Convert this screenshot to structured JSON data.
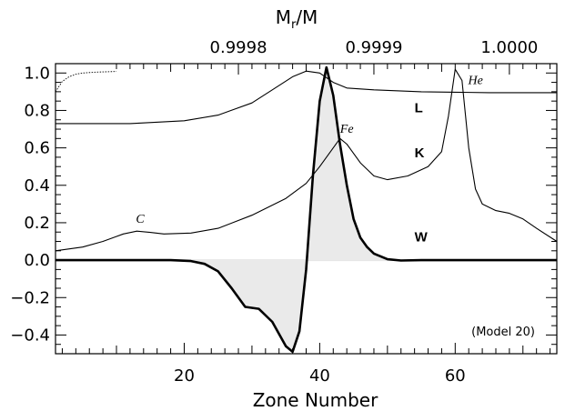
{
  "chart_data": {
    "type": "line",
    "xlabel": "Zone Number",
    "top_axis_label": "M",
    "top_axis_label_sub": "r",
    "top_axis_label_tail": "/M",
    "xlim": [
      1,
      75
    ],
    "ylim": [
      -0.5,
      1.05
    ],
    "x_ticks": [
      20,
      40,
      60
    ],
    "x_tick_labels": [
      "20",
      "40",
      "60"
    ],
    "y_ticks": [
      -0.4,
      -0.2,
      0.0,
      0.2,
      0.4,
      0.6,
      0.8,
      1.0
    ],
    "y_tick_labels": [
      "−0.4",
      "−0.2",
      "0.0",
      "0.2",
      "0.4",
      "0.6",
      "0.8",
      "1.0"
    ],
    "top_ticks": [
      {
        "label": "0.9998",
        "at_zone": 28
      },
      {
        "label": "0.9999",
        "at_zone": 48
      },
      {
        "label": "1.0000",
        "at_zone": 68
      }
    ],
    "annotation": "(Model 20)",
    "series": [
      {
        "name": "W",
        "label": "W",
        "label_at": [
          54,
          0.1
        ],
        "style": "bold",
        "points": [
          [
            1,
            0
          ],
          [
            18,
            0
          ],
          [
            21,
            -0.005
          ],
          [
            23,
            -0.02
          ],
          [
            25,
            -0.06
          ],
          [
            27,
            -0.15
          ],
          [
            29,
            -0.25
          ],
          [
            31,
            -0.26
          ],
          [
            33,
            -0.33
          ],
          [
            35,
            -0.46
          ],
          [
            36,
            -0.49
          ],
          [
            37,
            -0.38
          ],
          [
            38,
            -0.05
          ],
          [
            39,
            0.45
          ],
          [
            40,
            0.85
          ],
          [
            41,
            1.03
          ],
          [
            42,
            0.88
          ],
          [
            43,
            0.62
          ],
          [
            44,
            0.4
          ],
          [
            45,
            0.22
          ],
          [
            46,
            0.12
          ],
          [
            47,
            0.07
          ],
          [
            48,
            0.035
          ],
          [
            50,
            0.005
          ],
          [
            52,
            -0.002
          ],
          [
            55,
            0
          ],
          [
            75,
            0
          ]
        ]
      },
      {
        "name": "L",
        "label": "L",
        "label_at": [
          54,
          0.79
        ],
        "style": "thin",
        "points": [
          [
            1,
            0.73
          ],
          [
            12,
            0.73
          ],
          [
            20,
            0.745
          ],
          [
            25,
            0.775
          ],
          [
            30,
            0.84
          ],
          [
            33,
            0.91
          ],
          [
            36,
            0.98
          ],
          [
            38,
            1.01
          ],
          [
            40,
            1.0
          ],
          [
            42,
            0.95
          ],
          [
            44,
            0.92
          ],
          [
            48,
            0.91
          ],
          [
            55,
            0.9
          ],
          [
            65,
            0.895
          ],
          [
            75,
            0.895
          ]
        ]
      },
      {
        "name": "K",
        "label": "K",
        "label_at": [
          54,
          0.55
        ],
        "style": "thin",
        "points": [
          [
            1,
            0.05
          ],
          [
            5,
            0.07
          ],
          [
            8,
            0.1
          ],
          [
            11,
            0.14
          ],
          [
            13,
            0.155
          ],
          [
            15,
            0.148
          ],
          [
            17,
            0.14
          ],
          [
            21,
            0.145
          ],
          [
            25,
            0.17
          ],
          [
            30,
            0.24
          ],
          [
            35,
            0.33
          ],
          [
            38,
            0.41
          ],
          [
            40,
            0.5
          ],
          [
            42,
            0.6
          ],
          [
            43,
            0.65
          ],
          [
            44,
            0.62
          ],
          [
            46,
            0.52
          ],
          [
            48,
            0.45
          ],
          [
            50,
            0.43
          ],
          [
            53,
            0.45
          ],
          [
            56,
            0.5
          ],
          [
            58,
            0.58
          ],
          [
            59,
            0.77
          ],
          [
            60,
            1.02
          ],
          [
            61,
            0.96
          ],
          [
            62,
            0.6
          ],
          [
            63,
            0.38
          ],
          [
            64,
            0.3
          ],
          [
            66,
            0.265
          ],
          [
            68,
            0.25
          ],
          [
            70,
            0.22
          ],
          [
            72,
            0.17
          ],
          [
            75,
            0.1
          ]
        ]
      },
      {
        "name": "Dotted",
        "style": "dotted",
        "points": [
          [
            1,
            0.9
          ],
          [
            2,
            0.955
          ],
          [
            3,
            0.98
          ],
          [
            4,
            0.993
          ],
          [
            5,
            1.0
          ],
          [
            7,
            1.005
          ],
          [
            10,
            1.008
          ]
        ]
      }
    ],
    "italic_labels": [
      {
        "text": "C",
        "at": [
          13.5,
          0.2
        ]
      },
      {
        "text": "Fe",
        "at": [
          44,
          0.68
        ]
      },
      {
        "text": "He",
        "at": [
          63,
          0.94
        ]
      }
    ]
  }
}
